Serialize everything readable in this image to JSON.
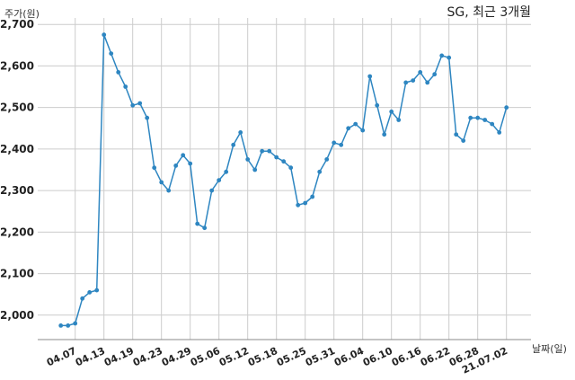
{
  "chart_data": {
    "type": "line",
    "title": "SG, 최근 3개월",
    "ylabel": "주가(원)",
    "xlabel": "날짜(일)",
    "ylim": [
      1950,
      2715
    ],
    "yticks": [
      2000,
      2100,
      2200,
      2300,
      2400,
      2500,
      2600,
      2700
    ],
    "ytick_labels": [
      "2,000",
      "2,100",
      "2,200",
      "2,300",
      "2,400",
      "2,500",
      "2,600",
      "2,700"
    ],
    "xtick_labels": [
      "04.07",
      "04.13",
      "04.19",
      "04.23",
      "04.29",
      "05.06",
      "05.12",
      "05.18",
      "05.25",
      "05.31",
      "06.04",
      "06.10",
      "06.16",
      "06.22",
      "06.28",
      "21.07.02"
    ],
    "xtick_index": [
      2,
      6,
      10,
      14,
      18,
      22,
      26,
      30,
      34,
      38,
      42,
      46,
      50,
      54,
      58,
      62
    ],
    "grid": true,
    "legend": false,
    "color": "#2e86c1",
    "series": [
      {
        "values": [
          1975,
          1975,
          1980,
          2040,
          2055,
          2060,
          2675,
          2630,
          2585,
          2550,
          2505,
          2510,
          2475,
          2355,
          2320,
          2300,
          2360,
          2385,
          2365,
          2220,
          2210,
          2300,
          2325,
          2345,
          2410,
          2440,
          2375,
          2350,
          2395,
          2395,
          2380,
          2370,
          2355,
          2265,
          2270,
          2285,
          2345,
          2375,
          2415,
          2410,
          2450,
          2460,
          2445,
          2575,
          2505,
          2435,
          2490,
          2470,
          2560,
          2565,
          2585,
          2560,
          2580,
          2625,
          2620,
          2435,
          2420,
          2475,
          2475,
          2470,
          2460,
          2440,
          2500
        ]
      }
    ]
  }
}
